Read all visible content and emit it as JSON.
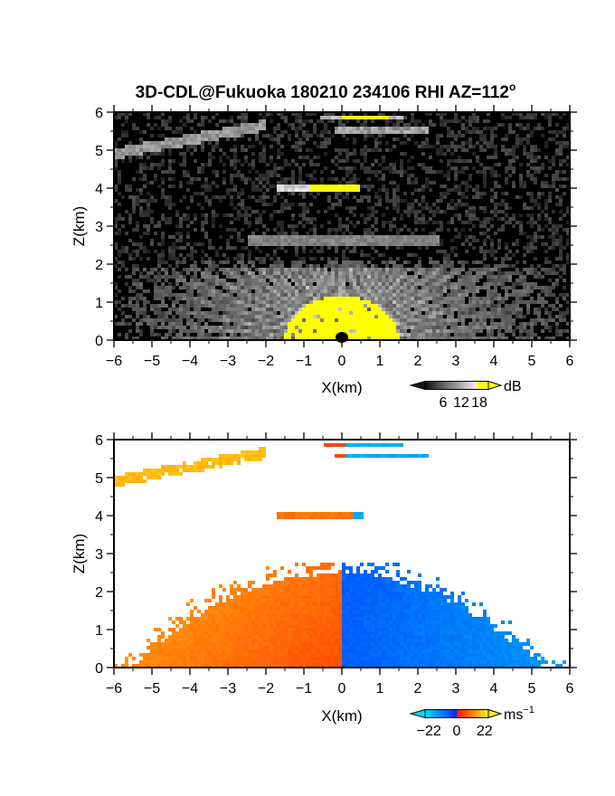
{
  "title": "3D-CDL@Fukuoka 180210 234106 RHI AZ=112",
  "title_superscript": "o",
  "chart_data": [
    {
      "type": "heatmap",
      "name": "backscatter-intensity",
      "xlabel": "X(km)",
      "ylabel": "Z(km)",
      "xlim": [
        -6,
        6
      ],
      "ylim": [
        0,
        6
      ],
      "xticks": [
        "-6",
        "-5",
        "-4",
        "-3",
        "-2",
        "-1",
        "0",
        "1",
        "2",
        "3",
        "4",
        "5",
        "6"
      ],
      "yticks": [
        "0",
        "1",
        "2",
        "3",
        "4",
        "5",
        "6"
      ],
      "colorbar": {
        "unit": "dB",
        "ticks": [
          "6",
          "12",
          "18"
        ],
        "range": [
          0,
          21
        ],
        "colormap": "grayscale-to-yellow"
      },
      "features": [
        {
          "kind": "near-ground dome",
          "x_range": [
            -1.3,
            1.6
          ],
          "z_range": [
            0,
            1.2
          ],
          "value_db": 19
        },
        {
          "kind": "radial beams",
          "x_range": [
            -6,
            6
          ],
          "z_range": [
            0,
            2.0
          ],
          "value_db": 10
        },
        {
          "kind": "aerosol layer",
          "x_range": [
            -2.5,
            2.6
          ],
          "z": 2.65,
          "value_db": 8
        },
        {
          "kind": "cloud layer",
          "x_range": [
            -1.7,
            0.5
          ],
          "z": 4.02,
          "value_db": 16
        },
        {
          "kind": "cloud layer",
          "x_range": [
            -6,
            -2.0
          ],
          "z": [
            4.9,
            5.65
          ],
          "value_db": 9
        },
        {
          "kind": "cloud layer",
          "x_range": [
            -0.6,
            1.6
          ],
          "z": 5.85,
          "value_db": 17
        },
        {
          "kind": "cloud layer",
          "x_range": [
            -0.2,
            2.3
          ],
          "z": 5.55,
          "value_db": 10
        }
      ]
    },
    {
      "type": "heatmap",
      "name": "radial-velocity",
      "xlabel": "X(km)",
      "ylabel": "Z(km)",
      "xlim": [
        -6,
        6
      ],
      "ylim": [
        0,
        6
      ],
      "xticks": [
        "-6",
        "-5",
        "-4",
        "-3",
        "-2",
        "-1",
        "0",
        "1",
        "2",
        "3",
        "4",
        "5",
        "6"
      ],
      "yticks": [
        "0",
        "1",
        "2",
        "3",
        "4",
        "5",
        "6"
      ],
      "colorbar": {
        "unit": "ms",
        "unit_superscript": "-1",
        "ticks": [
          "-22",
          "0",
          "22"
        ],
        "range": [
          -25,
          25
        ],
        "colormap": "cyan-blue-red-yellow"
      },
      "features": [
        {
          "kind": "boundary layer, away side",
          "x_range": [
            -5.5,
            0
          ],
          "z_range": [
            0,
            2.7
          ],
          "velocity_ms": 10
        },
        {
          "kind": "boundary layer, toward side",
          "x_range": [
            0,
            5.3
          ],
          "z_range": [
            0,
            2.7
          ],
          "velocity_ms": -12
        },
        {
          "kind": "cloud layer",
          "x_range": [
            -1.7,
            0.5
          ],
          "z": 4.02,
          "velocity_ms": 10
        },
        {
          "kind": "cloud layer",
          "x_range": [
            -6,
            -2.0
          ],
          "z": [
            4.9,
            5.65
          ],
          "velocity_ms": 19
        },
        {
          "kind": "cloud layer",
          "x_range": [
            -0.5,
            1.6
          ],
          "z": 5.85,
          "velocity_ms": -16
        },
        {
          "kind": "cloud layer",
          "x_range": [
            -0.2,
            2.3
          ],
          "z": 5.55,
          "velocity_ms": -16
        }
      ]
    }
  ]
}
